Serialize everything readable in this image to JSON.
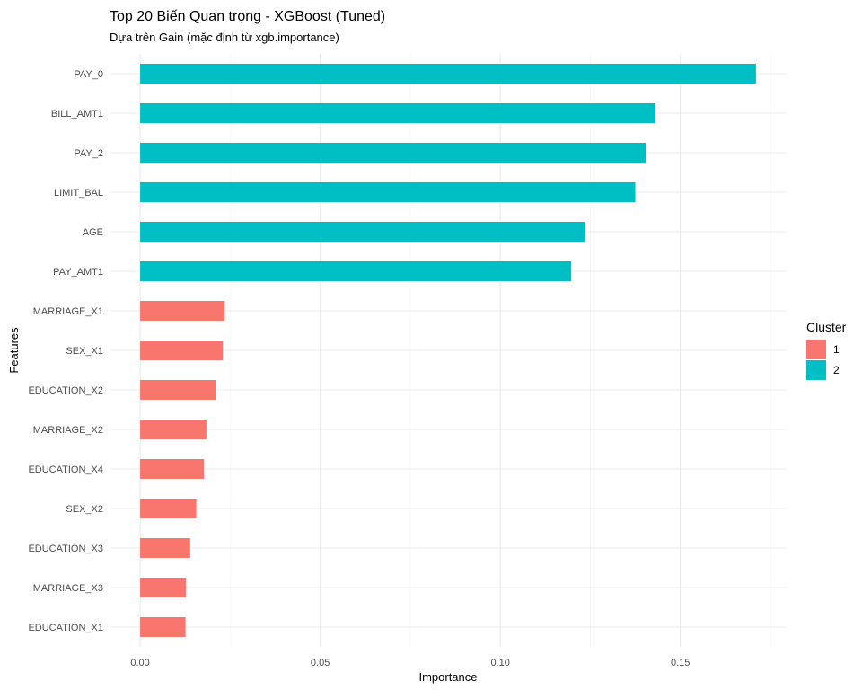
{
  "chart_data": {
    "type": "bar",
    "orientation": "horizontal",
    "title": "Top 20 Biến Quan trọng - XGBoost (Tuned)",
    "subtitle": "Dựa trên Gain (mặc định từ xgb.importance)",
    "xlabel": "Importance",
    "ylabel": "Features",
    "xlim": [
      -0.0085,
      0.1795
    ],
    "x_ticks": [
      0.0,
      0.05,
      0.1,
      0.15
    ],
    "x_tick_labels": [
      "0.00",
      "0.05",
      "0.10",
      "0.15"
    ],
    "grid": true,
    "legend": {
      "title": "Cluster",
      "placement": "right",
      "entries": [
        {
          "label": "1",
          "color": "#F8766D"
        },
        {
          "label": "2",
          "color": "#00BFC4"
        }
      ]
    },
    "categories": [
      "PAY_0",
      "BILL_AMT1",
      "PAY_2",
      "LIMIT_BAL",
      "AGE",
      "PAY_AMT1",
      "MARRIAGE_X1",
      "SEX_X1",
      "EDUCATION_X2",
      "MARRIAGE_X2",
      "EDUCATION_X4",
      "SEX_X2",
      "EDUCATION_X3",
      "MARRIAGE_X3",
      "EDUCATION_X1"
    ],
    "values": [
      0.171,
      0.143,
      0.1405,
      0.1375,
      0.1235,
      0.1197,
      0.0235,
      0.023,
      0.021,
      0.0184,
      0.0177,
      0.0156,
      0.0139,
      0.0127,
      0.0126
    ],
    "clusters": [
      "2",
      "2",
      "2",
      "2",
      "2",
      "2",
      "1",
      "1",
      "1",
      "1",
      "1",
      "1",
      "1",
      "1",
      "1"
    ]
  }
}
